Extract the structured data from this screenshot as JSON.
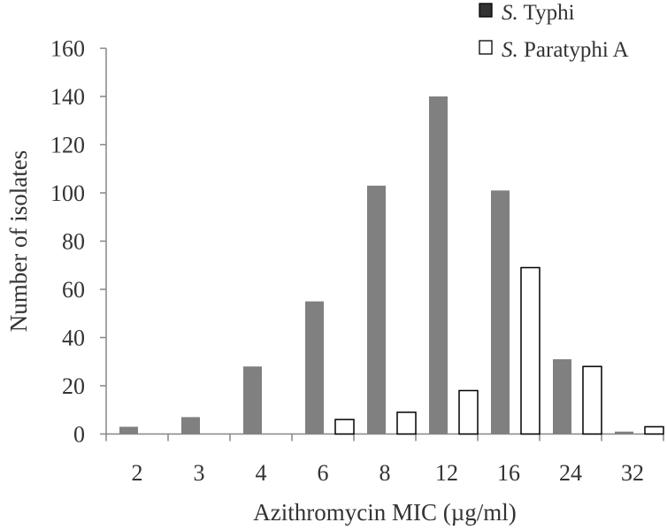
{
  "chart_data": {
    "type": "bar",
    "xlabel": "Azithromycin MIC (µg/ml)",
    "ylabel": "Number of isolates",
    "categories": [
      "2",
      "3",
      "4",
      "6",
      "8",
      "12",
      "16",
      "24",
      "32"
    ],
    "series": [
      {
        "name_italic": "S.",
        "name_rest": " Typhi",
        "color": "#808080",
        "values": [
          3,
          7,
          28,
          55,
          103,
          140,
          101,
          31,
          1
        ]
      },
      {
        "name_italic": "S.",
        "name_rest": " Paratyphi A",
        "color": "#ffffff",
        "values": [
          0,
          0,
          0,
          6,
          9,
          18,
          69,
          28,
          3
        ]
      }
    ],
    "ylim": [
      0,
      160
    ],
    "yticks": [
      0,
      20,
      40,
      60,
      80,
      100,
      120,
      140,
      160
    ],
    "grid": false,
    "legend": "top-right"
  }
}
